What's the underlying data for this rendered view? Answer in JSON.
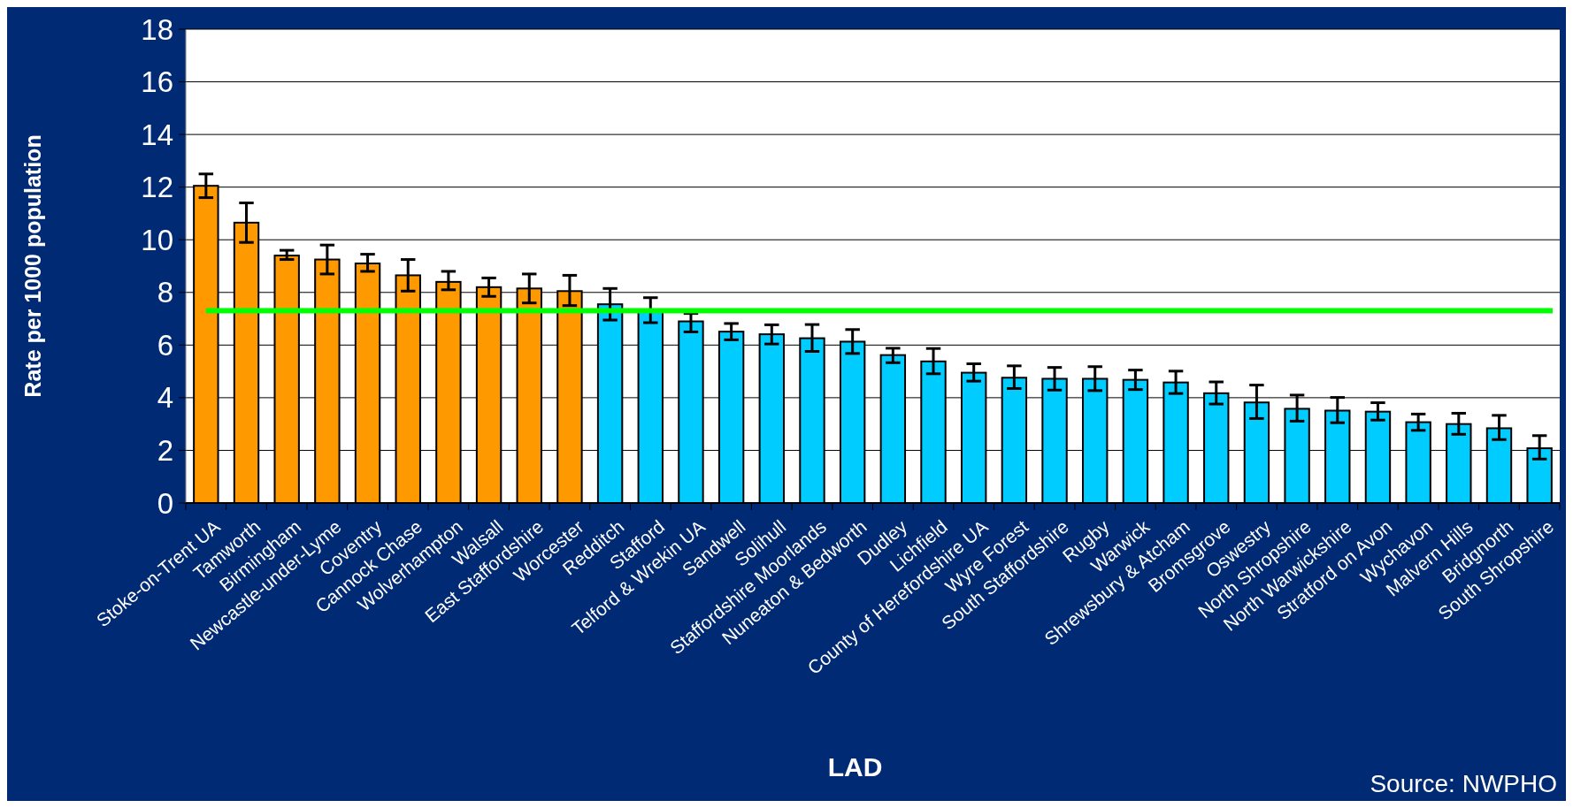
{
  "chart_data": {
    "type": "bar",
    "xlabel": "LAD",
    "ylabel": "Rate per 1000 population",
    "categories": [
      "Stoke-on-Trent UA",
      "Tamworth",
      "Birmingham",
      "Newcastle-under-Lyme",
      "Coventry",
      "Cannock Chase",
      "Wolverhampton",
      "Walsall",
      "East Staffordshire",
      "Worcester",
      "Redditch",
      "Stafford",
      "Telford & Wrekin UA",
      "Sandwell",
      "Solihull",
      "Staffordshire Moorlands",
      "Nuneaton & Bedworth",
      "Dudley",
      "Lichfield",
      "County of Herefordshire UA",
      "Wyre Forest",
      "South Staffordshire",
      "Rugby",
      "Warwick",
      "Shrewsbury & Atcham",
      "Bromsgrove",
      "Oswestry",
      "North Shropshire",
      "North Warwickshire",
      "Stratford on Avon",
      "Wychavon",
      "Malvern Hills",
      "Bridgnorth",
      "South Shropshire"
    ],
    "values": [
      12.05,
      10.65,
      9.4,
      9.25,
      9.1,
      8.65,
      8.4,
      8.2,
      8.15,
      8.05,
      7.55,
      7.3,
      6.9,
      6.51,
      6.41,
      6.26,
      6.13,
      5.62,
      5.38,
      4.95,
      4.76,
      4.72,
      4.72,
      4.68,
      4.58,
      4.17,
      3.82,
      3.58,
      3.51,
      3.47,
      3.07,
      3.0,
      2.84,
      2.08
    ],
    "errors": [
      [
        11.6,
        12.5
      ],
      [
        9.9,
        11.4
      ],
      [
        9.25,
        9.6
      ],
      [
        8.7,
        9.8
      ],
      [
        8.8,
        9.45
      ],
      [
        8.05,
        9.25
      ],
      [
        8.1,
        8.8
      ],
      [
        7.85,
        8.55
      ],
      [
        7.6,
        8.7
      ],
      [
        7.5,
        8.65
      ],
      [
        6.95,
        8.15
      ],
      [
        6.85,
        7.8
      ],
      [
        6.5,
        7.2
      ],
      [
        6.2,
        6.82
      ],
      [
        6.04,
        6.77
      ],
      [
        5.76,
        6.78
      ],
      [
        5.68,
        6.59
      ],
      [
        5.33,
        5.88
      ],
      [
        4.91,
        5.87
      ],
      [
        4.63,
        5.29
      ],
      [
        4.35,
        5.21
      ],
      [
        4.29,
        5.15
      ],
      [
        4.27,
        5.18
      ],
      [
        4.31,
        5.05
      ],
      [
        4.16,
        5.01
      ],
      [
        3.76,
        4.6
      ],
      [
        3.21,
        4.48
      ],
      [
        3.11,
        4.1
      ],
      [
        3.05,
        4.01
      ],
      [
        3.15,
        3.81
      ],
      [
        2.76,
        3.38
      ],
      [
        2.61,
        3.41
      ],
      [
        2.41,
        3.33
      ],
      [
        1.67,
        2.56
      ]
    ],
    "colors": [
      "#ff9900",
      "#ff9900",
      "#ff9900",
      "#ff9900",
      "#ff9900",
      "#ff9900",
      "#ff9900",
      "#ff9900",
      "#ff9900",
      "#ff9900",
      "#00ccff",
      "#00ccff",
      "#00ccff",
      "#00ccff",
      "#00ccff",
      "#00ccff",
      "#00ccff",
      "#00ccff",
      "#00ccff",
      "#00ccff",
      "#00ccff",
      "#00ccff",
      "#00ccff",
      "#00ccff",
      "#00ccff",
      "#00ccff",
      "#00ccff",
      "#00ccff",
      "#00ccff",
      "#00ccff",
      "#00ccff",
      "#00ccff",
      "#00ccff",
      "#00ccff"
    ],
    "ylim": [
      0,
      18
    ],
    "yticks": [
      0,
      2,
      4,
      6,
      8,
      10,
      12,
      14,
      16,
      18
    ],
    "grid": "y",
    "ref_lines": [
      {
        "axis": "y",
        "value": 7.3,
        "color": "#00ff00"
      }
    ],
    "annotations": [
      "Source: NWPHO"
    ]
  }
}
